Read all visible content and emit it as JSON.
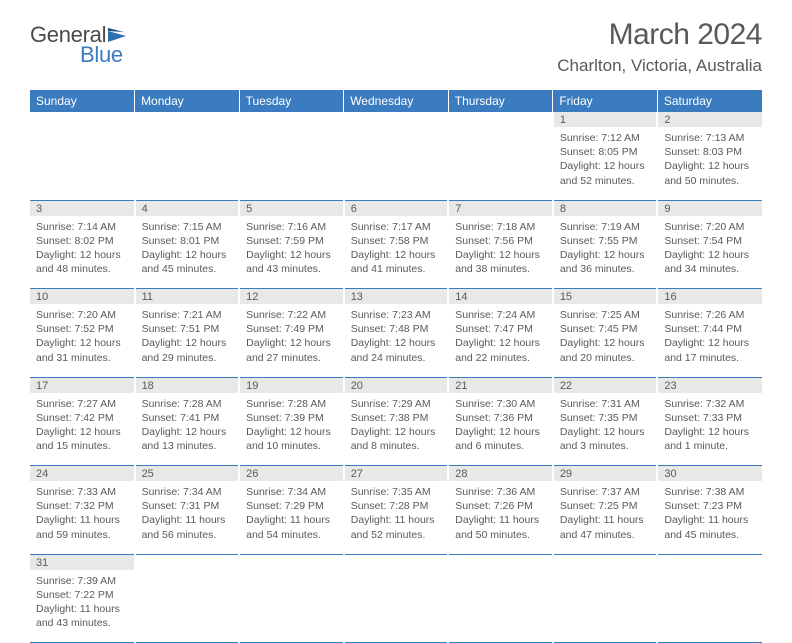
{
  "logo": {
    "word1": "General",
    "word2": "Blue"
  },
  "title": "March 2024",
  "location": "Charlton, Victoria, Australia",
  "colors": {
    "header_bg": "#3b7bbf",
    "daynum_bg": "#e8e8e8",
    "cell_underline": "#3b7bbf",
    "text": "#5a5a5a"
  },
  "day_headers": [
    "Sunday",
    "Monday",
    "Tuesday",
    "Wednesday",
    "Thursday",
    "Friday",
    "Saturday"
  ],
  "weeks": [
    [
      null,
      null,
      null,
      null,
      null,
      {
        "n": "1",
        "sunrise": "Sunrise: 7:12 AM",
        "sunset": "Sunset: 8:05 PM",
        "dl1": "Daylight: 12 hours",
        "dl2": "and 52 minutes."
      },
      {
        "n": "2",
        "sunrise": "Sunrise: 7:13 AM",
        "sunset": "Sunset: 8:03 PM",
        "dl1": "Daylight: 12 hours",
        "dl2": "and 50 minutes."
      }
    ],
    [
      {
        "n": "3",
        "sunrise": "Sunrise: 7:14 AM",
        "sunset": "Sunset: 8:02 PM",
        "dl1": "Daylight: 12 hours",
        "dl2": "and 48 minutes."
      },
      {
        "n": "4",
        "sunrise": "Sunrise: 7:15 AM",
        "sunset": "Sunset: 8:01 PM",
        "dl1": "Daylight: 12 hours",
        "dl2": "and 45 minutes."
      },
      {
        "n": "5",
        "sunrise": "Sunrise: 7:16 AM",
        "sunset": "Sunset: 7:59 PM",
        "dl1": "Daylight: 12 hours",
        "dl2": "and 43 minutes."
      },
      {
        "n": "6",
        "sunrise": "Sunrise: 7:17 AM",
        "sunset": "Sunset: 7:58 PM",
        "dl1": "Daylight: 12 hours",
        "dl2": "and 41 minutes."
      },
      {
        "n": "7",
        "sunrise": "Sunrise: 7:18 AM",
        "sunset": "Sunset: 7:56 PM",
        "dl1": "Daylight: 12 hours",
        "dl2": "and 38 minutes."
      },
      {
        "n": "8",
        "sunrise": "Sunrise: 7:19 AM",
        "sunset": "Sunset: 7:55 PM",
        "dl1": "Daylight: 12 hours",
        "dl2": "and 36 minutes."
      },
      {
        "n": "9",
        "sunrise": "Sunrise: 7:20 AM",
        "sunset": "Sunset: 7:54 PM",
        "dl1": "Daylight: 12 hours",
        "dl2": "and 34 minutes."
      }
    ],
    [
      {
        "n": "10",
        "sunrise": "Sunrise: 7:20 AM",
        "sunset": "Sunset: 7:52 PM",
        "dl1": "Daylight: 12 hours",
        "dl2": "and 31 minutes."
      },
      {
        "n": "11",
        "sunrise": "Sunrise: 7:21 AM",
        "sunset": "Sunset: 7:51 PM",
        "dl1": "Daylight: 12 hours",
        "dl2": "and 29 minutes."
      },
      {
        "n": "12",
        "sunrise": "Sunrise: 7:22 AM",
        "sunset": "Sunset: 7:49 PM",
        "dl1": "Daylight: 12 hours",
        "dl2": "and 27 minutes."
      },
      {
        "n": "13",
        "sunrise": "Sunrise: 7:23 AM",
        "sunset": "Sunset: 7:48 PM",
        "dl1": "Daylight: 12 hours",
        "dl2": "and 24 minutes."
      },
      {
        "n": "14",
        "sunrise": "Sunrise: 7:24 AM",
        "sunset": "Sunset: 7:47 PM",
        "dl1": "Daylight: 12 hours",
        "dl2": "and 22 minutes."
      },
      {
        "n": "15",
        "sunrise": "Sunrise: 7:25 AM",
        "sunset": "Sunset: 7:45 PM",
        "dl1": "Daylight: 12 hours",
        "dl2": "and 20 minutes."
      },
      {
        "n": "16",
        "sunrise": "Sunrise: 7:26 AM",
        "sunset": "Sunset: 7:44 PM",
        "dl1": "Daylight: 12 hours",
        "dl2": "and 17 minutes."
      }
    ],
    [
      {
        "n": "17",
        "sunrise": "Sunrise: 7:27 AM",
        "sunset": "Sunset: 7:42 PM",
        "dl1": "Daylight: 12 hours",
        "dl2": "and 15 minutes."
      },
      {
        "n": "18",
        "sunrise": "Sunrise: 7:28 AM",
        "sunset": "Sunset: 7:41 PM",
        "dl1": "Daylight: 12 hours",
        "dl2": "and 13 minutes."
      },
      {
        "n": "19",
        "sunrise": "Sunrise: 7:28 AM",
        "sunset": "Sunset: 7:39 PM",
        "dl1": "Daylight: 12 hours",
        "dl2": "and 10 minutes."
      },
      {
        "n": "20",
        "sunrise": "Sunrise: 7:29 AM",
        "sunset": "Sunset: 7:38 PM",
        "dl1": "Daylight: 12 hours",
        "dl2": "and 8 minutes."
      },
      {
        "n": "21",
        "sunrise": "Sunrise: 7:30 AM",
        "sunset": "Sunset: 7:36 PM",
        "dl1": "Daylight: 12 hours",
        "dl2": "and 6 minutes."
      },
      {
        "n": "22",
        "sunrise": "Sunrise: 7:31 AM",
        "sunset": "Sunset: 7:35 PM",
        "dl1": "Daylight: 12 hours",
        "dl2": "and 3 minutes."
      },
      {
        "n": "23",
        "sunrise": "Sunrise: 7:32 AM",
        "sunset": "Sunset: 7:33 PM",
        "dl1": "Daylight: 12 hours",
        "dl2": "and 1 minute."
      }
    ],
    [
      {
        "n": "24",
        "sunrise": "Sunrise: 7:33 AM",
        "sunset": "Sunset: 7:32 PM",
        "dl1": "Daylight: 11 hours",
        "dl2": "and 59 minutes."
      },
      {
        "n": "25",
        "sunrise": "Sunrise: 7:34 AM",
        "sunset": "Sunset: 7:31 PM",
        "dl1": "Daylight: 11 hours",
        "dl2": "and 56 minutes."
      },
      {
        "n": "26",
        "sunrise": "Sunrise: 7:34 AM",
        "sunset": "Sunset: 7:29 PM",
        "dl1": "Daylight: 11 hours",
        "dl2": "and 54 minutes."
      },
      {
        "n": "27",
        "sunrise": "Sunrise: 7:35 AM",
        "sunset": "Sunset: 7:28 PM",
        "dl1": "Daylight: 11 hours",
        "dl2": "and 52 minutes."
      },
      {
        "n": "28",
        "sunrise": "Sunrise: 7:36 AM",
        "sunset": "Sunset: 7:26 PM",
        "dl1": "Daylight: 11 hours",
        "dl2": "and 50 minutes."
      },
      {
        "n": "29",
        "sunrise": "Sunrise: 7:37 AM",
        "sunset": "Sunset: 7:25 PM",
        "dl1": "Daylight: 11 hours",
        "dl2": "and 47 minutes."
      },
      {
        "n": "30",
        "sunrise": "Sunrise: 7:38 AM",
        "sunset": "Sunset: 7:23 PM",
        "dl1": "Daylight: 11 hours",
        "dl2": "and 45 minutes."
      }
    ],
    [
      {
        "n": "31",
        "sunrise": "Sunrise: 7:39 AM",
        "sunset": "Sunset: 7:22 PM",
        "dl1": "Daylight: 11 hours",
        "dl2": "and 43 minutes."
      },
      null,
      null,
      null,
      null,
      null,
      null
    ]
  ]
}
